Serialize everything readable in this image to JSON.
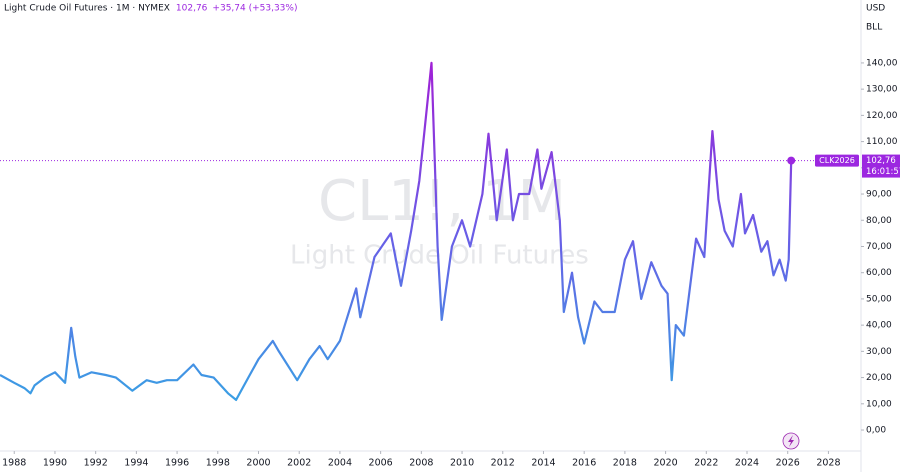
{
  "chart_data": {
    "type": "line",
    "title": "Light Crude Oil Futures · 1M · NYMEX",
    "legend_price": "102,76",
    "change": "+35,74 (+53,33%)",
    "currency": "USD",
    "unit": "BLL",
    "watermark": "CL1!, 1M",
    "watermark_subtitle": "Light Crude Oil Futures",
    "symbol_badge": "CLK2026",
    "badge_price": "102,76",
    "countdown": "16:01:57",
    "last_price": 102.76,
    "gradient_colors": [
      "#3a9fe4",
      "#6a5ce6",
      "#a020d6"
    ],
    "accent_color": "#9c27e0",
    "xlim": [
      1987.3,
      2029.6
    ],
    "ylim": [
      -8,
      164
    ],
    "xticks": [
      1988,
      1990,
      1992,
      1994,
      1996,
      1998,
      2000,
      2002,
      2004,
      2006,
      2008,
      2010,
      2012,
      2014,
      2016,
      2018,
      2020,
      2022,
      2024,
      2026,
      2028
    ],
    "yticks": [
      {
        "value": 0,
        "label": "0,00"
      },
      {
        "value": 10,
        "label": "10,00"
      },
      {
        "value": 20,
        "label": "20,00"
      },
      {
        "value": 30,
        "label": "30,00"
      },
      {
        "value": 40,
        "label": "40,00"
      },
      {
        "value": 50,
        "label": "50,00"
      },
      {
        "value": 60,
        "label": "60,00"
      },
      {
        "value": 70,
        "label": "70,00"
      },
      {
        "value": 80,
        "label": "80,00"
      },
      {
        "value": 90,
        "label": "90,00"
      },
      {
        "value": 100,
        "label": "100,00"
      },
      {
        "value": 110,
        "label": "110,00"
      },
      {
        "value": 120,
        "label": "120,00"
      },
      {
        "value": 130,
        "label": "130,00"
      },
      {
        "value": 140,
        "label": "140,00"
      }
    ],
    "x": [
      1987.3,
      1988.0,
      1988.5,
      1988.8,
      1989.0,
      1989.5,
      1990.0,
      1990.5,
      1990.8,
      1991.0,
      1991.2,
      1991.8,
      1992.5,
      1993.0,
      1993.8,
      1994.5,
      1995.0,
      1995.5,
      1996.0,
      1996.8,
      1997.2,
      1997.8,
      1998.5,
      1998.9,
      1999.5,
      2000.0,
      2000.7,
      2001.0,
      2001.9,
      2002.5,
      2003.0,
      2003.4,
      2004.0,
      2004.8,
      2005.0,
      2005.7,
      2006.5,
      2007.0,
      2007.5,
      2007.9,
      2008.5,
      2008.8,
      2009.0,
      2009.5,
      2010.0,
      2010.4,
      2011.0,
      2011.3,
      2011.7,
      2012.2,
      2012.5,
      2012.8,
      2013.3,
      2013.7,
      2013.9,
      2014.4,
      2014.8,
      2015.0,
      2015.4,
      2015.7,
      2016.0,
      2016.5,
      2016.9,
      2017.5,
      2018.0,
      2018.4,
      2018.8,
      2019.3,
      2019.8,
      2020.1,
      2020.3,
      2020.5,
      2020.9,
      2021.5,
      2021.9,
      2022.3,
      2022.6,
      2022.9,
      2023.3,
      2023.7,
      2023.9,
      2024.3,
      2024.7,
      2025.0,
      2025.3,
      2025.6,
      2025.9,
      2026.05,
      2026.17
    ],
    "series": [
      {
        "name": "CL1!",
        "values": [
          21,
          18,
          16,
          14,
          17,
          20,
          22,
          18,
          39,
          28,
          20,
          22,
          21,
          20,
          15,
          19,
          18,
          19,
          19,
          25,
          21,
          20,
          14,
          11.5,
          20,
          27,
          34,
          30,
          19,
          27,
          32,
          27,
          34,
          54,
          43,
          66,
          75,
          55,
          76,
          95,
          140,
          70,
          42,
          70,
          80,
          70,
          90,
          113,
          80,
          107,
          80,
          90,
          90,
          107,
          92,
          106,
          80,
          45,
          60,
          43,
          33,
          49,
          45,
          45,
          65,
          72,
          50,
          64,
          55,
          52,
          19,
          40,
          36,
          73,
          66,
          114,
          88,
          76,
          70,
          90,
          75,
          82,
          68,
          72,
          59,
          65,
          57,
          65,
          102.76
        ]
      }
    ]
  }
}
